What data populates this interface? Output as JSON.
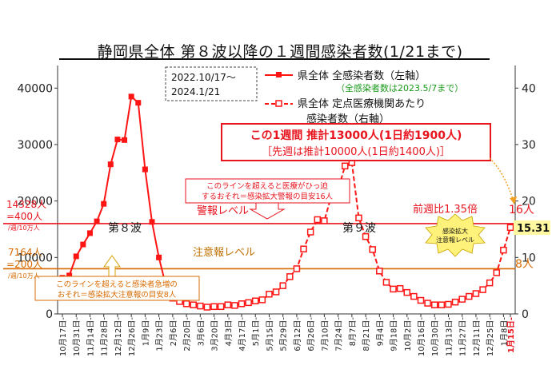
{
  "title": "静岡県全体 第８波以降の１週間感染者数(1/21まで)",
  "period": {
    "line1": "2022.10/17〜",
    "line2": "2024.1/21"
  },
  "legend": {
    "s1_label": "県全体 全感染者数（左軸）",
    "s1_note": "（全感染者数は2023.5/7まで）",
    "s2_label_line1": "県全体 定点医療機関あたり",
    "s2_label_line2": "感染者数（右軸）"
  },
  "summary_box": {
    "line1": "この1週間 推計13000人(1日約1900人)",
    "line2": "［先週は推計10000人(1日約1400人)］"
  },
  "annotations": {
    "alert_desc_line1": "このラインを超えると医療がひっ迫",
    "alert_desc_line2": "するおそれ＝感染拡大警報の目安16人",
    "alert_label": "警報レベル",
    "caution_desc_line1": "このラインを超えると感染者急増の",
    "caution_desc_line2": "おそれ＝感染拡大注意報の目安8人",
    "caution_label": "注意報レベル",
    "wave8": "第８波",
    "wave9": "第９波",
    "ratio": "前週比1.35倍",
    "current": "15.31",
    "starburst_line1": "感染拡大",
    "starburst_line2": "注意報レベル",
    "alert_right": "16人",
    "caution_right": "8人",
    "left_alert_line1": "14328人",
    "left_alert_line2": "=400人",
    "left_alert_line3": "/週/10万人",
    "left_caution_line1": "7164人",
    "left_caution_line2": "=200人",
    "left_caution_line3": "/週/10万人"
  },
  "colors": {
    "series": "#ff1414",
    "alert": "#e8141e",
    "caution": "#d86a00",
    "caution_text": "#c07000",
    "note_green": "#1a9a1a"
  },
  "chart_data": {
    "type": "line",
    "left_axis": {
      "min": 0,
      "max": 44000,
      "ticks": [
        0,
        10000,
        20000,
        30000,
        40000
      ]
    },
    "right_axis": {
      "min": 0,
      "max": 44,
      "ticks": [
        0,
        10,
        20,
        30,
        40
      ]
    },
    "x_labels": [
      "10月17日",
      "10月31日",
      "11月14日",
      "11月28日",
      "12月12日",
      "12月26日",
      "1月9日",
      "1月23日",
      "2月6日",
      "2月20日",
      "3月6日",
      "3月20日",
      "4月3日",
      "4月17日",
      "5月1日",
      "5月15日",
      "5月29日",
      "6月12日",
      "6月26日",
      "7月10日",
      "7月24日",
      "8月7日",
      "8月21日",
      "9月4日",
      "9月18日",
      "10月2日",
      "10月16日",
      "10月30日",
      "11月13日",
      "11月27日",
      "12月11日",
      "12月25日",
      "1月8日",
      "1月15日"
    ],
    "highlight_label": "1月15日",
    "series": [
      {
        "name": "県全体 全感染者数（左軸）",
        "axis": "left",
        "values": [
          6400,
          6800,
          10200,
          12300,
          14300,
          16400,
          19500,
          26500,
          30900,
          30800,
          38500,
          37400,
          25600,
          16300,
          10000,
          5100,
          2800
        ]
      },
      {
        "name": "県全体 定点医療機関あたり感染者数（右軸）",
        "axis": "right",
        "start_index": 16,
        "values": [
          2.8,
          2.2,
          1.8,
          1.6,
          1.4,
          1.2,
          1.3,
          1.3,
          1.6,
          1.5,
          1.8,
          2.0,
          2.3,
          2.5,
          3.5,
          3.9,
          5.0,
          6.6,
          8.0,
          11.5,
          14.5,
          16.7,
          16.5,
          20.8,
          22.0,
          26.2,
          26.8,
          17.0,
          13.7,
          11.4,
          7.6,
          5.6,
          4.4,
          4.5,
          3.8,
          3.1,
          2.4,
          1.9,
          1.6,
          1.6,
          1.7,
          2.1,
          2.6,
          3.1,
          3.6,
          4.3,
          5.5,
          7.3,
          11.3,
          15.31
        ]
      }
    ],
    "reference_lines": [
      {
        "name": "警報レベル",
        "left_value": 14328,
        "right_value": 16
      },
      {
        "name": "注意報レベル",
        "left_value": 7164,
        "right_value": 8
      }
    ]
  }
}
